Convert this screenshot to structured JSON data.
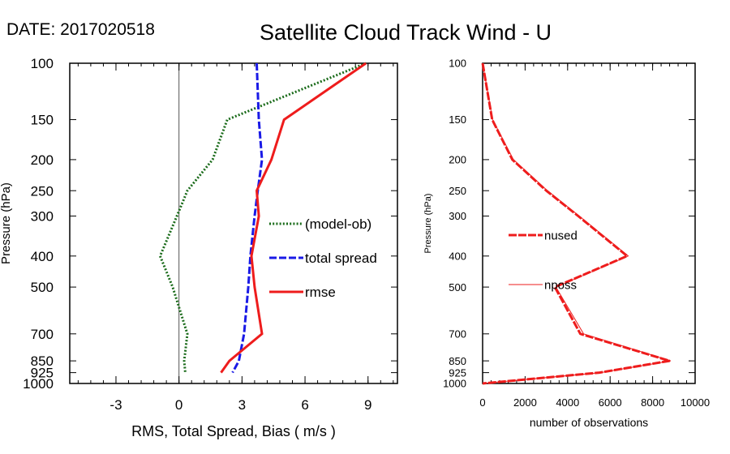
{
  "date_label": "DATE: 2017020518",
  "title": "Satellite Cloud Track Wind - U",
  "chart_data": [
    {
      "type": "line",
      "name": "left-panel",
      "xlabel": "RMS, Total Spread, Bias ( m/s )",
      "ylabel": "Pressure (hPa)",
      "xlim": [
        -5.2,
        10.4
      ],
      "ylim": [
        1000,
        100
      ],
      "yscale": "log",
      "xticks": [
        -3,
        0,
        3,
        6,
        9
      ],
      "yticks": [
        100,
        150,
        200,
        250,
        300,
        400,
        500,
        700,
        850,
        925,
        1000
      ],
      "zero_line": true,
      "legend_position": "right-middle",
      "series": [
        {
          "name": "(model-ob)",
          "color": "#1a6b1a",
          "style": "dotted",
          "points": [
            [
              8.9,
              100
            ],
            [
              2.3,
              150
            ],
            [
              1.6,
              200
            ],
            [
              0.4,
              250
            ],
            [
              -0.1,
              300
            ],
            [
              -0.9,
              400
            ],
            [
              -0.3,
              500
            ],
            [
              0.4,
              700
            ],
            [
              0.25,
              850
            ],
            [
              0.3,
              925
            ]
          ]
        },
        {
          "name": "total spread",
          "color": "#1a1ae6",
          "style": "dashed",
          "points": [
            [
              3.7,
              100
            ],
            [
              3.8,
              150
            ],
            [
              3.95,
              200
            ],
            [
              3.75,
              250
            ],
            [
              3.6,
              300
            ],
            [
              3.4,
              400
            ],
            [
              3.3,
              500
            ],
            [
              3.1,
              700
            ],
            [
              2.85,
              850
            ],
            [
              2.55,
              925
            ]
          ]
        },
        {
          "name": "rmse",
          "color": "#ee1c1c",
          "style": "solid",
          "points": [
            [
              8.9,
              100
            ],
            [
              5.0,
              150
            ],
            [
              4.4,
              200
            ],
            [
              3.7,
              250
            ],
            [
              3.8,
              300
            ],
            [
              3.45,
              400
            ],
            [
              3.6,
              500
            ],
            [
              3.95,
              700
            ],
            [
              2.4,
              850
            ],
            [
              2.0,
              925
            ]
          ]
        }
      ]
    },
    {
      "type": "line",
      "name": "right-panel",
      "xlabel": "number of observations",
      "ylabel": "Pressure (hPa)",
      "xlim": [
        0,
        10000
      ],
      "ylim": [
        1000,
        100
      ],
      "yscale": "log",
      "xticks": [
        0,
        2000,
        4000,
        6000,
        8000,
        10000
      ],
      "yticks": [
        100,
        150,
        200,
        250,
        300,
        400,
        500,
        700,
        850,
        925,
        1000
      ],
      "legend_position": "left-middle",
      "series": [
        {
          "name": "nused",
          "color": "#ee1c1c",
          "style": "dashed-thick",
          "points": [
            [
              0,
              100
            ],
            [
              450,
              150
            ],
            [
              1400,
              200
            ],
            [
              3000,
              250
            ],
            [
              4500,
              300
            ],
            [
              6800,
              400
            ],
            [
              3400,
              500
            ],
            [
              4600,
              700
            ],
            [
              8800,
              850
            ],
            [
              5500,
              925
            ],
            [
              0,
              1000
            ]
          ]
        },
        {
          "name": "nposs",
          "color": "#ee1c1c",
          "style": "thin",
          "points": [
            [
              0,
              100
            ],
            [
              470,
              150
            ],
            [
              1450,
              200
            ],
            [
              3050,
              250
            ],
            [
              4550,
              300
            ],
            [
              6850,
              400
            ],
            [
              3450,
              500
            ],
            [
              4750,
              700
            ],
            [
              8850,
              850
            ],
            [
              5550,
              925
            ],
            [
              0,
              1000
            ]
          ]
        }
      ]
    }
  ]
}
